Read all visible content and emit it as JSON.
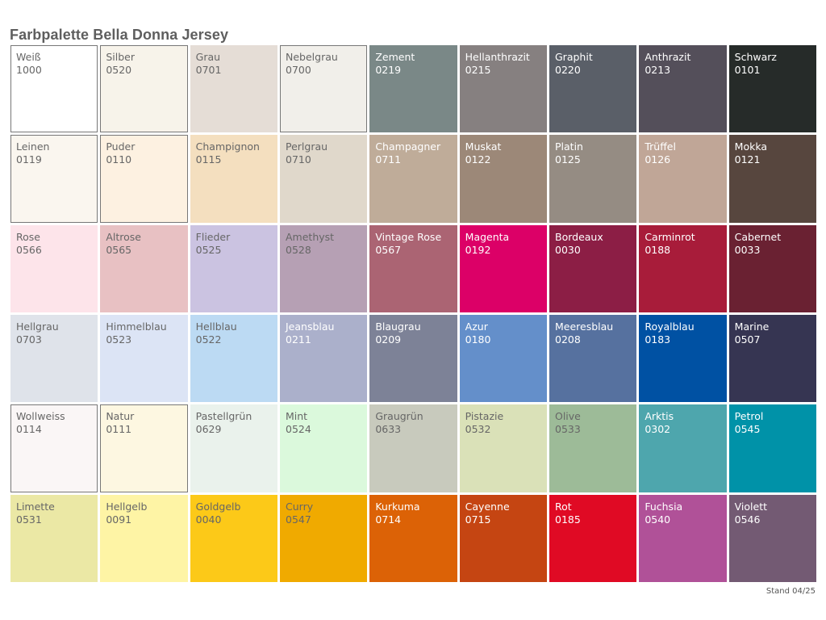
{
  "title": "Farbpalette Bella Donna Jersey",
  "footer": "Stand 04/25",
  "colors": [
    {
      "name": "Weiß",
      "code": "1000",
      "hex": "#ffffff",
      "text": "#666666",
      "bordered": true
    },
    {
      "name": "Silber",
      "code": "0520",
      "hex": "#f7f3ea",
      "text": "#666666",
      "bordered": true
    },
    {
      "name": "Grau",
      "code": "0701",
      "hex": "#e5ddd6",
      "text": "#666666"
    },
    {
      "name": "Nebelgrau",
      "code": "0700",
      "hex": "#f1efea",
      "text": "#666666",
      "bordered": true
    },
    {
      "name": "Zement",
      "code": "0219",
      "hex": "#7a8887",
      "text": "#ffffff"
    },
    {
      "name": "Hellanthrazit",
      "code": "0215",
      "hex": "#868080",
      "text": "#ffffff"
    },
    {
      "name": "Graphit",
      "code": "0220",
      "hex": "#5a5f68",
      "text": "#ffffff"
    },
    {
      "name": "Anthrazit",
      "code": "0213",
      "hex": "#544f5a",
      "text": "#ffffff"
    },
    {
      "name": "Schwarz",
      "code": "0101",
      "hex": "#262b29",
      "text": "#ffffff"
    },
    {
      "name": "Leinen",
      "code": "0119",
      "hex": "#faf6ef",
      "text": "#666666",
      "bordered": true
    },
    {
      "name": "Puder",
      "code": "0110",
      "hex": "#fdf1e1",
      "text": "#666666",
      "bordered": true
    },
    {
      "name": "Champignon",
      "code": "0115",
      "hex": "#f4dfbf",
      "text": "#666666"
    },
    {
      "name": "Perlgrau",
      "code": "0710",
      "hex": "#e0d8cb",
      "text": "#666666"
    },
    {
      "name": "Champagner",
      "code": "0711",
      "hex": "#bfac99",
      "text": "#ffffff"
    },
    {
      "name": "Muskat",
      "code": "0122",
      "hex": "#9c8878",
      "text": "#ffffff"
    },
    {
      "name": "Platin",
      "code": "0125",
      "hex": "#958c83",
      "text": "#ffffff"
    },
    {
      "name": "Trüffel",
      "code": "0126",
      "hex": "#c0a697",
      "text": "#ffffff"
    },
    {
      "name": "Mokka",
      "code": "0121",
      "hex": "#57463e",
      "text": "#ffffff"
    },
    {
      "name": "Rose",
      "code": "0566",
      "hex": "#fde4ea",
      "text": "#666666"
    },
    {
      "name": "Altrose",
      "code": "0565",
      "hex": "#e8c1c3",
      "text": "#666666"
    },
    {
      "name": "Flieder",
      "code": "0525",
      "hex": "#cbc3e1",
      "text": "#666666"
    },
    {
      "name": "Amethyst",
      "code": "0528",
      "hex": "#b6a0b4",
      "text": "#666666"
    },
    {
      "name": "Vintage Rose",
      "code": "0567",
      "hex": "#ab6473",
      "text": "#ffffff"
    },
    {
      "name": "Magenta",
      "code": "0192",
      "hex": "#dc0067",
      "text": "#ffffff"
    },
    {
      "name": "Bordeaux",
      "code": "0030",
      "hex": "#8c1e45",
      "text": "#ffffff"
    },
    {
      "name": "Carminrot",
      "code": "0188",
      "hex": "#a81c3a",
      "text": "#ffffff"
    },
    {
      "name": "Cabernet",
      "code": "0033",
      "hex": "#6a2132",
      "text": "#ffffff"
    },
    {
      "name": "Hellgrau",
      "code": "0703",
      "hex": "#dfe3ea",
      "text": "#666666"
    },
    {
      "name": "Himmelblau",
      "code": "0523",
      "hex": "#dce4f5",
      "text": "#666666"
    },
    {
      "name": "Hellblau",
      "code": "0522",
      "hex": "#bcdaf3",
      "text": "#666666"
    },
    {
      "name": "Jeansblau",
      "code": "0211",
      "hex": "#abb0cb",
      "text": "#ffffff"
    },
    {
      "name": "Blaugrau",
      "code": "0209",
      "hex": "#7d8297",
      "text": "#ffffff"
    },
    {
      "name": "Azur",
      "code": "0180",
      "hex": "#648fca",
      "text": "#ffffff"
    },
    {
      "name": "Meeresblau",
      "code": "0208",
      "hex": "#56719f",
      "text": "#ffffff"
    },
    {
      "name": "Royalblau",
      "code": "0183",
      "hex": "#0051a3",
      "text": "#ffffff"
    },
    {
      "name": "Marine",
      "code": "0507",
      "hex": "#363552",
      "text": "#ffffff"
    },
    {
      "name": "Wollweiss",
      "code": "0114",
      "hex": "#faf6f6",
      "text": "#666666",
      "bordered": true
    },
    {
      "name": "Natur",
      "code": "0111",
      "hex": "#fdf7e1",
      "text": "#666666",
      "bordered": true
    },
    {
      "name": "Pastellgrün",
      "code": "0629",
      "hex": "#eaf2ec",
      "text": "#666666"
    },
    {
      "name": "Mint",
      "code": "0524",
      "hex": "#dbf9dc",
      "text": "#666666"
    },
    {
      "name": "Graugrün",
      "code": "0633",
      "hex": "#c8cabd",
      "text": "#666666"
    },
    {
      "name": "Pistazie",
      "code": "0532",
      "hex": "#dae1b8",
      "text": "#666666"
    },
    {
      "name": "Olive",
      "code": "0533",
      "hex": "#9dbb98",
      "text": "#666666"
    },
    {
      "name": "Arktis",
      "code": "0302",
      "hex": "#4ea6ad",
      "text": "#ffffff"
    },
    {
      "name": "Petrol",
      "code": "0545",
      "hex": "#0092a8",
      "text": "#ffffff"
    },
    {
      "name": "Limette",
      "code": "0531",
      "hex": "#ebe8a5",
      "text": "#666666"
    },
    {
      "name": "Hellgelb",
      "code": "0091",
      "hex": "#fef4a5",
      "text": "#666666"
    },
    {
      "name": "Goldgelb",
      "code": "0040",
      "hex": "#fcc918",
      "text": "#666666"
    },
    {
      "name": "Curry",
      "code": "0547",
      "hex": "#f0aa00",
      "text": "#666666"
    },
    {
      "name": "Kurkuma",
      "code": "0714",
      "hex": "#dc6206",
      "text": "#ffffff"
    },
    {
      "name": "Cayenne",
      "code": "0715",
      "hex": "#c54512",
      "text": "#ffffff"
    },
    {
      "name": "Rot",
      "code": "0185",
      "hex": "#e00a24",
      "text": "#ffffff"
    },
    {
      "name": "Fuchsia",
      "code": "0540",
      "hex": "#b05198",
      "text": "#ffffff"
    },
    {
      "name": "Violett",
      "code": "0546",
      "hex": "#735a73",
      "text": "#ffffff"
    }
  ]
}
